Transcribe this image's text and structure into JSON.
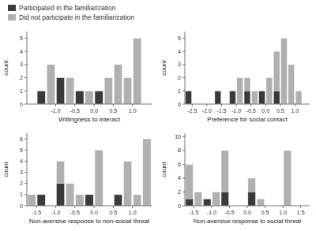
{
  "chart_data": [
    {
      "type": "histogram",
      "x_label": "Willingness to interact",
      "y_label": "count",
      "stacked": false,
      "bins": [
        -1.5,
        -1.25,
        -1.0,
        -0.75,
        -0.5,
        -0.25,
        0.0,
        0.25,
        0.5,
        0.75,
        1.0,
        1.25,
        1.5
      ],
      "series": [
        {
          "name": "Participated in the familiarization",
          "color": "#3a3a3a",
          "values": [
            1,
            0,
            2,
            0,
            1,
            0,
            1,
            0,
            0,
            0,
            0,
            0
          ]
        },
        {
          "name": "Did not participate in the familiarization",
          "color": "#b0b0b0",
          "values": [
            0,
            3,
            1,
            2,
            1,
            1,
            0,
            2,
            3,
            2,
            5,
            0
          ]
        }
      ],
      "xlim": [
        -1.75,
        1.5
      ],
      "ylim": [
        0,
        5.5
      ],
      "xticks": [
        {
          "value": -1.0,
          "label": "-1.0"
        },
        -0.5,
        {
          "value": 0.0,
          "label": "0.0"
        },
        0.5,
        {
          "value": 1.0,
          "label": "1.0"
        }
      ],
      "yticks": [
        0,
        1,
        2,
        3,
        4,
        5
      ]
    },
    {
      "type": "histogram",
      "x_label": "Preference for social contact",
      "y_label": "count",
      "stacked": false,
      "bins": [
        -2.75,
        -2.5,
        -2.25,
        -2.0,
        -1.75,
        -1.5,
        -1.25,
        -1.0,
        -0.75,
        -0.5,
        -0.25,
        0.0,
        0.25,
        0.5,
        0.75,
        1.0,
        1.25
      ],
      "series": [
        {
          "color": "#3a3a3a",
          "values": [
            1,
            0,
            0,
            0,
            1,
            0,
            1,
            0,
            1,
            0,
            1,
            0,
            1,
            0,
            0,
            0
          ]
        },
        {
          "color": "#b0b0b0",
          "values": [
            0,
            0,
            0,
            0,
            0,
            0,
            0,
            2,
            2,
            1,
            1,
            2,
            4,
            5,
            3,
            1
          ]
        }
      ],
      "xlim": [
        -2.75,
        1.5
      ],
      "ylim": [
        0,
        5.5
      ],
      "xticks": [
        -2.5,
        {
          "value": -2.0,
          "label": "-2.0"
        },
        -1.5,
        {
          "value": -1.0,
          "label": "-1.0"
        },
        -0.5,
        {
          "value": 0.0,
          "label": "0.0"
        },
        0.5,
        {
          "value": 1.0,
          "label": "1.0"
        }
      ],
      "yticks": [
        0,
        1,
        2,
        3,
        4,
        5
      ]
    },
    {
      "type": "histogram",
      "x_label": "Non-aversive response to non-social threat",
      "y_label": "count",
      "stacked": false,
      "bins": [
        -1.75,
        -1.5,
        -1.25,
        -1.0,
        -0.75,
        -0.5,
        -0.25,
        0.0,
        0.25,
        0.5,
        0.75,
        1.0,
        1.25,
        1.5
      ],
      "series": [
        {
          "color": "#3a3a3a",
          "values": [
            0,
            1,
            0,
            2,
            0,
            0,
            1,
            0,
            0,
            1,
            0,
            0,
            0
          ]
        },
        {
          "color": "#b0b0b0",
          "values": [
            1,
            0,
            0,
            4,
            2,
            1,
            0,
            5,
            0,
            0,
            4,
            1,
            6
          ]
        }
      ],
      "xlim": [
        -1.75,
        1.5
      ],
      "ylim": [
        0,
        6.5
      ],
      "xticks": [
        -1.5,
        {
          "value": -1.0,
          "label": "-1.0"
        },
        -0.5,
        {
          "value": 0.0,
          "label": "0.0"
        },
        0.5,
        {
          "value": 1.0,
          "label": "1.0"
        }
      ],
      "yticks": [
        0,
        1,
        2,
        3,
        4,
        5,
        6
      ]
    },
    {
      "type": "histogram",
      "x_label": "Non-aversive response to social threat",
      "y_label": "count",
      "stacked": false,
      "bins": [
        -1.75,
        -1.5,
        -1.25,
        -1.0,
        -0.75,
        -0.5,
        -0.25,
        0.0,
        0.25,
        0.5,
        0.75,
        1.0,
        1.25,
        1.5,
        1.75
      ],
      "series": [
        {
          "color": "#3a3a3a",
          "values": [
            1,
            0,
            1,
            0,
            2,
            0,
            0,
            2,
            0,
            0,
            0,
            0,
            0,
            0
          ]
        },
        {
          "color": "#b0b0b0",
          "values": [
            6,
            2,
            1,
            2,
            8,
            0,
            0,
            4,
            1,
            0,
            0,
            8,
            0,
            0
          ]
        }
      ],
      "xlim": [
        -1.75,
        1.75
      ],
      "ylim": [
        0,
        10.5
      ],
      "xticks": [
        -1.5,
        {
          "value": -1.0,
          "label": "-1.0"
        },
        -0.5,
        {
          "value": 0.0,
          "label": "0.0"
        },
        0.5,
        {
          "value": 1.0,
          "label": "1.0"
        },
        1.5
      ],
      "yticks": [
        0,
        2,
        4,
        6,
        8,
        10
      ]
    }
  ]
}
